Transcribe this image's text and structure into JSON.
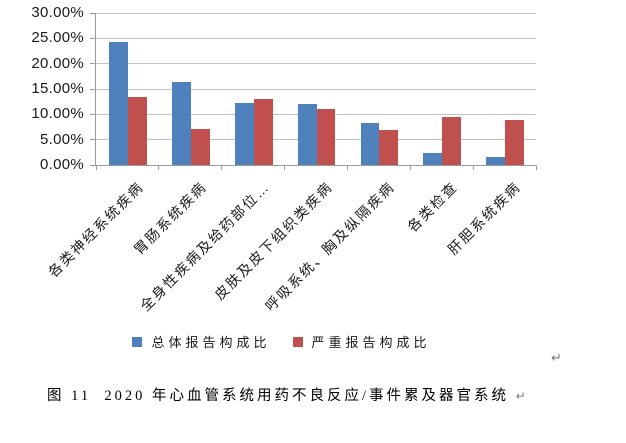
{
  "chart_data": {
    "type": "bar",
    "title": "",
    "xlabel": "",
    "ylabel": "",
    "categories": [
      "各类神经系统疾病",
      "胃肠系统疾病",
      "全身性疾病及给药部位…",
      "皮肤及皮下组织类疾病",
      "呼吸系统、胸及纵隔疾病",
      "各类检查",
      "肝胆系统疾病"
    ],
    "series": [
      {
        "name": "总体报告构成比",
        "color": "#4F81BD",
        "values": [
          24.3,
          16.3,
          12.2,
          12.1,
          8.3,
          2.4,
          1.6
        ]
      },
      {
        "name": "严重报告构成比",
        "color": "#C0504D",
        "values": [
          13.5,
          7.1,
          13.1,
          11.1,
          7.0,
          9.5,
          8.8
        ]
      }
    ],
    "value_unit": "%",
    "ylim": [
      0,
      30
    ],
    "y_tick_labels": [
      "30.00%",
      "25.00%",
      "20.00%",
      "15.00%",
      "10.00%",
      "5.00%",
      "0.00%"
    ],
    "y_tick_values": [
      30,
      25,
      20,
      15,
      10,
      5,
      0
    ],
    "grid": true,
    "legend_position": "bottom",
    "x_label_rotation_deg": 45
  },
  "caption": {
    "text": "图 11  2020 年心血管系统用药不良反应/事件累及器官系统"
  },
  "paragraph_marks": {
    "after_chart": "↵",
    "after_caption": "↵"
  },
  "colors": {
    "series_total_blue": "#4F81BD",
    "series_serious_red": "#C0504D",
    "gridline": "#C3C3C3",
    "axis": "#9B9B9B",
    "text": "#1A1A1A",
    "background": "#FFFFFF"
  }
}
